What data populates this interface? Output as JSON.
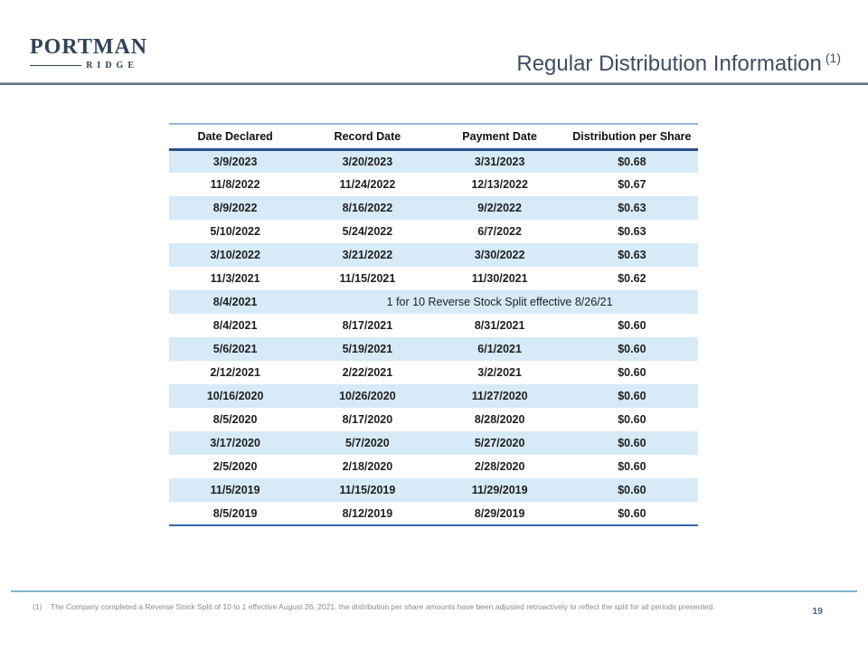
{
  "logo": {
    "primary": "PORTMAN",
    "secondary": "RIDGE"
  },
  "header": {
    "title": "Regular Distribution Information",
    "title_superscript": "(1)"
  },
  "table": {
    "columns": [
      "Date Declared",
      "Record Date",
      "Payment Date",
      "Distribution per Share"
    ],
    "rows": [
      {
        "cells": [
          "3/9/2023",
          "3/20/2023",
          "3/31/2023",
          "$0.68"
        ]
      },
      {
        "cells": [
          "11/8/2022",
          "11/24/2022",
          "12/13/2022",
          "$0.67"
        ]
      },
      {
        "cells": [
          "8/9/2022",
          "8/16/2022",
          "9/2/2022",
          "$0.63"
        ]
      },
      {
        "cells": [
          "5/10/2022",
          "5/24/2022",
          "6/7/2022",
          "$0.63"
        ]
      },
      {
        "cells": [
          "3/10/2022",
          "3/21/2022",
          "3/30/2022",
          "$0.63"
        ]
      },
      {
        "cells": [
          "11/3/2021",
          "11/15/2021",
          "11/30/2021",
          "$0.62"
        ]
      },
      {
        "cells": [
          "8/4/2021"
        ],
        "span_note": "1 for 10 Reverse Stock Split effective 8/26/21"
      },
      {
        "cells": [
          "8/4/2021",
          "8/17/2021",
          "8/31/2021",
          "$0.60"
        ]
      },
      {
        "cells": [
          "5/6/2021",
          "5/19/2021",
          "6/1/2021",
          "$0.60"
        ]
      },
      {
        "cells": [
          "2/12/2021",
          "2/22/2021",
          "3/2/2021",
          "$0.60"
        ]
      },
      {
        "cells": [
          "10/16/2020",
          "10/26/2020",
          "11/27/2020",
          "$0.60"
        ]
      },
      {
        "cells": [
          "8/5/2020",
          "8/17/2020",
          "8/28/2020",
          "$0.60"
        ]
      },
      {
        "cells": [
          "3/17/2020",
          "5/7/2020",
          "5/27/2020",
          "$0.60"
        ]
      },
      {
        "cells": [
          "2/5/2020",
          "2/18/2020",
          "2/28/2020",
          "$0.60"
        ]
      },
      {
        "cells": [
          "11/5/2019",
          "11/15/2019",
          "11/29/2019",
          "$0.60"
        ]
      },
      {
        "cells": [
          "8/5/2019",
          "8/12/2019",
          "8/29/2019",
          "$0.60"
        ]
      }
    ]
  },
  "footer": {
    "footnote_marker": "(1)",
    "footnote_text": "The Company completed a Reverse Stock Split of 10 to 1 effective August 26, 2021, the distribution per share amounts have been adjusted retroactively to reflect the split for all periods presented.",
    "page_number": "19"
  },
  "colors": {
    "title": "#3e4e62",
    "logo_navy": "#2f4358",
    "table_top_border": "#9ab6d8",
    "header_underline": "#2d5290",
    "row_alt_background": "#d6eaf8",
    "table_bottom_border": "#3465ad",
    "footer_rule": "#7fb2d0",
    "footnote_gray": "#8a8a8a",
    "page_number": "#51657f"
  }
}
